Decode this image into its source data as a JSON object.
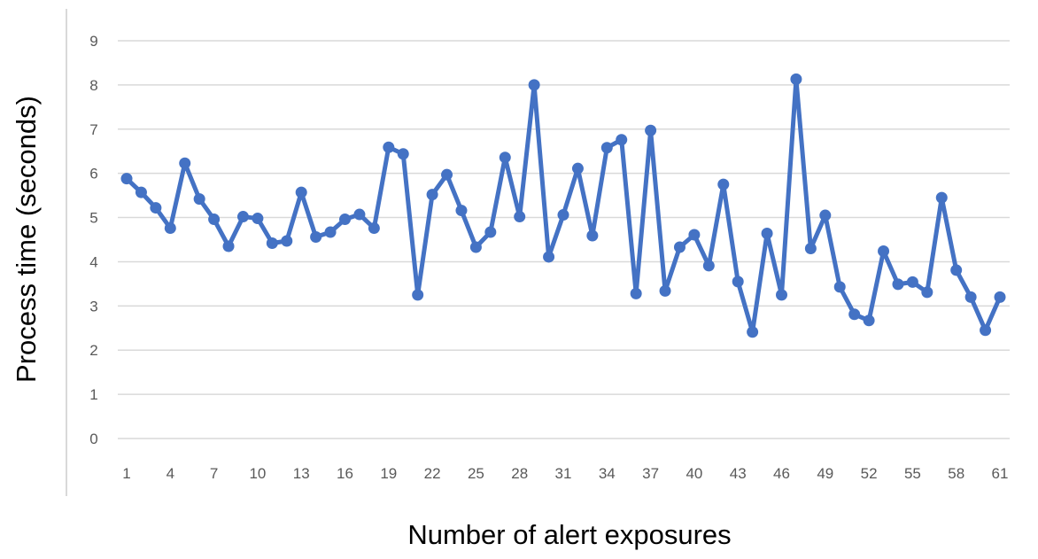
{
  "chart_data": {
    "type": "line",
    "title": "",
    "xlabel": "Number of alert exposures",
    "ylabel": "Process time (seconds)",
    "ylim": [
      0,
      9
    ],
    "y_ticks": [
      0,
      1,
      2,
      3,
      4,
      5,
      6,
      7,
      8,
      9
    ],
    "x_tick_labels": [
      "1",
      "4",
      "7",
      "10",
      "13",
      "16",
      "19",
      "22",
      "25",
      "28",
      "31",
      "34",
      "37",
      "40",
      "43",
      "46",
      "49",
      "52",
      "55",
      "58",
      "61"
    ],
    "grid": true,
    "legend": "none",
    "series": [
      {
        "color": "#4472C4",
        "x": [
          1,
          2,
          3,
          4,
          5,
          6,
          7,
          8,
          9,
          10,
          11,
          12,
          13,
          14,
          15,
          16,
          17,
          18,
          19,
          20,
          21,
          22,
          23,
          24,
          25,
          26,
          27,
          28,
          29,
          30,
          31,
          32,
          33,
          34,
          35,
          36,
          37,
          38,
          39,
          40,
          41,
          42,
          43,
          44,
          45,
          46,
          47,
          48,
          49,
          50,
          51,
          52,
          53,
          54,
          55,
          56,
          57,
          58,
          59,
          60,
          61
        ],
        "values": [
          5.88,
          5.57,
          5.22,
          4.76,
          6.23,
          5.42,
          4.96,
          4.35,
          5.02,
          4.98,
          4.42,
          4.47,
          5.57,
          4.56,
          4.67,
          4.96,
          5.07,
          4.76,
          6.59,
          6.44,
          3.25,
          5.52,
          5.97,
          5.16,
          4.33,
          4.67,
          6.36,
          5.02,
          8.0,
          4.11,
          5.06,
          6.11,
          4.59,
          6.58,
          6.76,
          3.28,
          6.97,
          3.34,
          4.33,
          4.61,
          3.91,
          5.75,
          3.55,
          2.41,
          4.64,
          3.25,
          8.13,
          4.3,
          5.05,
          3.43,
          2.81,
          2.67,
          4.24,
          3.49,
          3.54,
          3.31,
          5.45,
          3.81,
          3.2,
          2.45,
          3.2
        ]
      }
    ]
  }
}
